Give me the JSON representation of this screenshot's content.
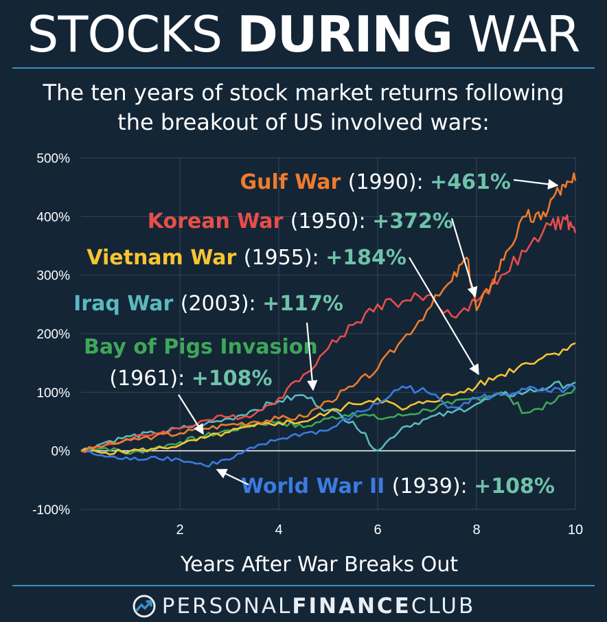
{
  "header": {
    "title_light_1": "STOCKS ",
    "title_bold": "DURING",
    "title_light_2": " WAR",
    "subtitle_line1": "The ten years of stock market returns following",
    "subtitle_line2": "the breakout of US involved wars:"
  },
  "footer": {
    "brand_light": "PERSONAL",
    "brand_bold": "FINANCE",
    "brand_light_2": "CLUB"
  },
  "chart_data": {
    "type": "line",
    "title": "STOCKS DURING WAR",
    "xlabel": "Years After War Breaks Out",
    "ylabel": "",
    "xlim": [
      0,
      10
    ],
    "ylim": [
      -100,
      500
    ],
    "xticks": [
      2,
      4,
      6,
      8,
      10
    ],
    "xtick_labels": [
      "2",
      "4",
      "6",
      "8",
      "10"
    ],
    "yticks": [
      -100,
      0,
      100,
      200,
      300,
      400,
      500
    ],
    "ytick_labels": [
      "-100%",
      "0%",
      "100%",
      "200%",
      "300%",
      "400%",
      "500%"
    ],
    "grid": true,
    "series": [
      {
        "name": "Gulf War",
        "year": "(1990)",
        "final": "+461%",
        "color": "#f07b2c",
        "points": [
          [
            0,
            0
          ],
          [
            0.5,
            10
          ],
          [
            1,
            18
          ],
          [
            1.5,
            25
          ],
          [
            2,
            30
          ],
          [
            2.5,
            38
          ],
          [
            3,
            45
          ],
          [
            3.5,
            50
          ],
          [
            4,
            55
          ],
          [
            4.5,
            58
          ],
          [
            5,
            85
          ],
          [
            5.5,
            110
          ],
          [
            6,
            140
          ],
          [
            6.5,
            190
          ],
          [
            7,
            240
          ],
          [
            7.5,
            290
          ],
          [
            7.8,
            330
          ],
          [
            8,
            240
          ],
          [
            8.3,
            285
          ],
          [
            8.6,
            340
          ],
          [
            9,
            400
          ],
          [
            9.3,
            395
          ],
          [
            9.6,
            440
          ],
          [
            9.8,
            450
          ],
          [
            10,
            461
          ]
        ]
      },
      {
        "name": "Korean War",
        "year": "(1950)",
        "final": "+372%",
        "color": "#e84e4a",
        "points": [
          [
            0,
            0
          ],
          [
            0.5,
            10
          ],
          [
            1,
            20
          ],
          [
            1.5,
            30
          ],
          [
            2,
            38
          ],
          [
            2.5,
            52
          ],
          [
            3,
            58
          ],
          [
            3.5,
            62
          ],
          [
            4,
            90
          ],
          [
            4.5,
            130
          ],
          [
            5,
            175
          ],
          [
            5.5,
            215
          ],
          [
            6,
            250
          ],
          [
            6.5,
            255
          ],
          [
            7,
            265
          ],
          [
            7.5,
            230
          ],
          [
            8,
            255
          ],
          [
            8.5,
            300
          ],
          [
            9,
            340
          ],
          [
            9.5,
            385
          ],
          [
            9.8,
            395
          ],
          [
            10,
            372
          ]
        ]
      },
      {
        "name": "Vietnam War",
        "year": "(1955)",
        "final": "+184%",
        "color": "#f7c531",
        "points": [
          [
            0,
            0
          ],
          [
            0.5,
            -3
          ],
          [
            1,
            0
          ],
          [
            1.5,
            3
          ],
          [
            2,
            10
          ],
          [
            2.5,
            22
          ],
          [
            3,
            32
          ],
          [
            3.5,
            42
          ],
          [
            4,
            48
          ],
          [
            4.5,
            50
          ],
          [
            5,
            65
          ],
          [
            5.5,
            80
          ],
          [
            6,
            90
          ],
          [
            6.5,
            70
          ],
          [
            7,
            85
          ],
          [
            7.5,
            95
          ],
          [
            8,
            110
          ],
          [
            8.5,
            130
          ],
          [
            9,
            150
          ],
          [
            9.5,
            165
          ],
          [
            10,
            184
          ]
        ]
      },
      {
        "name": "Iraq War",
        "year": "(2003)",
        "final": "+117%",
        "color": "#5ab9c0",
        "points": [
          [
            0,
            0
          ],
          [
            0.5,
            15
          ],
          [
            1,
            25
          ],
          [
            1.5,
            30
          ],
          [
            2,
            38
          ],
          [
            2.5,
            45
          ],
          [
            3,
            55
          ],
          [
            3.5,
            70
          ],
          [
            4,
            85
          ],
          [
            4.5,
            95
          ],
          [
            5,
            70
          ],
          [
            5.5,
            50
          ],
          [
            6,
            0
          ],
          [
            6.5,
            40
          ],
          [
            7,
            55
          ],
          [
            7.5,
            65
          ],
          [
            8,
            80
          ],
          [
            8.5,
            95
          ],
          [
            9,
            100
          ],
          [
            9.5,
            110
          ],
          [
            10,
            117
          ]
        ]
      },
      {
        "name": "Bay of Pigs Invasion",
        "year": "(1961)",
        "final": "+108%",
        "color": "#3fa65a",
        "points": [
          [
            0,
            0
          ],
          [
            0.5,
            5
          ],
          [
            1,
            -5
          ],
          [
            1.5,
            5
          ],
          [
            2,
            15
          ],
          [
            2.5,
            25
          ],
          [
            3,
            35
          ],
          [
            3.5,
            45
          ],
          [
            4,
            50
          ],
          [
            4.5,
            40
          ],
          [
            5,
            55
          ],
          [
            5.5,
            65
          ],
          [
            6,
            55
          ],
          [
            6.5,
            60
          ],
          [
            7,
            70
          ],
          [
            7.5,
            80
          ],
          [
            8,
            90
          ],
          [
            8.5,
            100
          ],
          [
            9,
            65
          ],
          [
            9.5,
            80
          ],
          [
            10,
            108
          ]
        ]
      },
      {
        "name": "World War II",
        "year": "(1939)",
        "final": "+108%",
        "color": "#3b7be0",
        "points": [
          [
            0,
            0
          ],
          [
            0.5,
            -10
          ],
          [
            1,
            -15
          ],
          [
            1.5,
            -10
          ],
          [
            2,
            -15
          ],
          [
            2.5,
            -25
          ],
          [
            3,
            -15
          ],
          [
            3.5,
            5
          ],
          [
            4,
            20
          ],
          [
            4.5,
            30
          ],
          [
            5,
            35
          ],
          [
            5.5,
            60
          ],
          [
            6,
            80
          ],
          [
            6.5,
            110
          ],
          [
            7,
            100
          ],
          [
            7.5,
            75
          ],
          [
            8,
            90
          ],
          [
            8.5,
            95
          ],
          [
            9,
            105
          ],
          [
            9.5,
            100
          ],
          [
            10,
            108
          ]
        ]
      }
    ]
  }
}
